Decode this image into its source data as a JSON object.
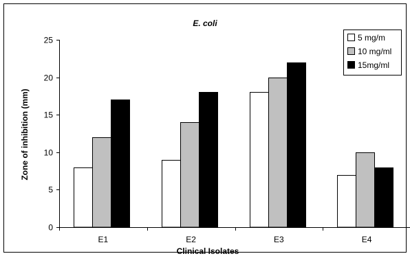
{
  "chart_data": {
    "type": "bar",
    "title": "E. coli",
    "xlabel": "Clinical Isolates",
    "ylabel": "Zone of inhibition (mm)",
    "categories": [
      "E1",
      "E2",
      "E3",
      "E4"
    ],
    "ylim": [
      0,
      25
    ],
    "yticks": [
      0,
      5,
      10,
      15,
      20,
      25
    ],
    "grid": false,
    "legend_position": "top-right",
    "series": [
      {
        "name": "5 mg/m",
        "color": "#ffffff",
        "values": [
          8,
          9,
          18,
          7
        ]
      },
      {
        "name": "10 mg/ml",
        "color": "#c0c0c0",
        "values": [
          12,
          14,
          20,
          10
        ]
      },
      {
        "name": "15mg/ml",
        "color": "#000000",
        "values": [
          17,
          18,
          22,
          8
        ]
      }
    ]
  }
}
